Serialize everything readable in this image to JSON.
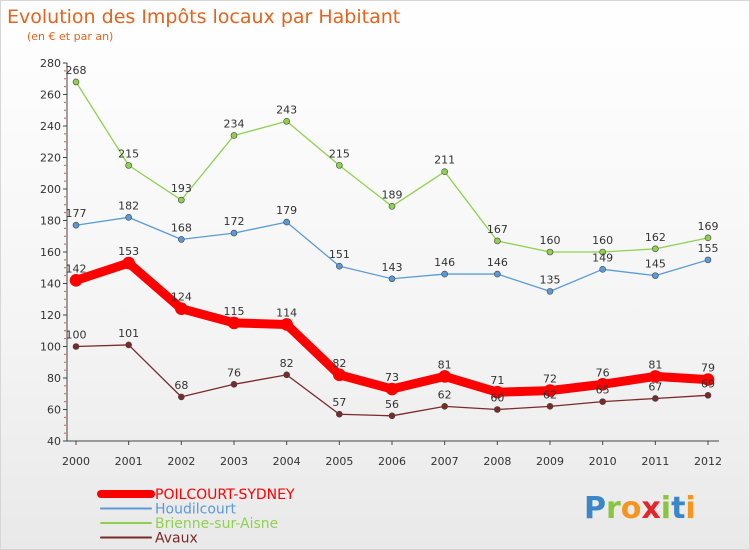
{
  "chart_data": {
    "type": "line",
    "title": "Evolution des Impôts locaux par Habitant",
    "subtitle": "(en € et par an)",
    "xlabel": "",
    "ylabel": "",
    "ylim": [
      40,
      280
    ],
    "yticks": [
      40,
      60,
      80,
      100,
      120,
      140,
      160,
      180,
      200,
      220,
      240,
      260,
      280
    ],
    "x": [
      "2000",
      "2001",
      "2002",
      "2003",
      "2004",
      "2005",
      "2006",
      "2007",
      "2008",
      "2009",
      "2010",
      "2011",
      "2012"
    ],
    "grid": false,
    "legend_position": "bottom-left",
    "series": [
      {
        "name": "POILCOURT-SYDNEY",
        "color": "#ff0000",
        "emphasis": true,
        "values": [
          142,
          153,
          124,
          115,
          114,
          82,
          73,
          81,
          71,
          72,
          76,
          81,
          79
        ]
      },
      {
        "name": "Houdilcourt",
        "color": "#5b9bd5",
        "values": [
          177,
          182,
          168,
          172,
          179,
          151,
          143,
          146,
          146,
          135,
          149,
          145,
          155
        ]
      },
      {
        "name": "Brienne-sur-Aisne",
        "color": "#8fd14f",
        "values": [
          268,
          215,
          193,
          234,
          243,
          215,
          189,
          211,
          167,
          160,
          160,
          162,
          169
        ]
      },
      {
        "name": "Avaux",
        "color": "#7a2a2a",
        "values": [
          100,
          101,
          68,
          76,
          82,
          57,
          56,
          62,
          60,
          62,
          65,
          67,
          69
        ]
      }
    ]
  },
  "logo": {
    "text": "Proxiti",
    "letters": [
      "P",
      "r",
      "o",
      "x",
      "i",
      "t",
      "i"
    ],
    "colors": [
      "#3a87c8",
      "#8bc53f",
      "#f7941d",
      "#e2262b",
      "#8bc53f",
      "#3a87c8",
      "#f7941d"
    ]
  }
}
